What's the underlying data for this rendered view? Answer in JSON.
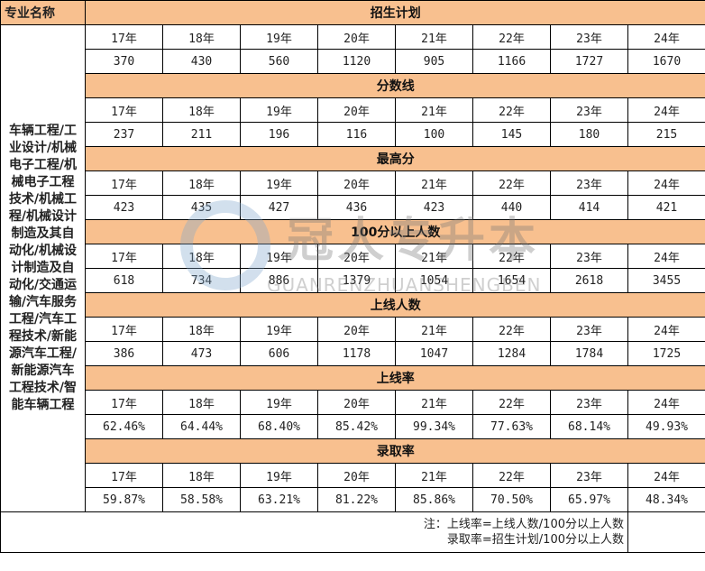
{
  "header": {
    "major_label": "专业名称"
  },
  "major": "车辆工程/工业设计/机械电子工程/机械电子工程技术/机械工程/机械设计制造及其自动化/机械设计制造及自动化/交通运输/汽车服务工程/汽车工程技术/新能源汽车工程/新能源汽车工程技术/智能车辆工程",
  "years": [
    "17年",
    "18年",
    "19年",
    "20年",
    "21年",
    "22年",
    "23年",
    "24年"
  ],
  "sections": [
    {
      "title": "招生计划",
      "values": [
        "370",
        "430",
        "560",
        "1120",
        "905",
        "1166",
        "1727",
        "1670"
      ]
    },
    {
      "title": "分数线",
      "values": [
        "237",
        "211",
        "196",
        "116",
        "100",
        "145",
        "180",
        "215"
      ]
    },
    {
      "title": "最高分",
      "values": [
        "423",
        "435",
        "427",
        "436",
        "423",
        "440",
        "414",
        "421"
      ]
    },
    {
      "title": "100分以上人数",
      "values": [
        "618",
        "734",
        "886",
        "1379",
        "1054",
        "1654",
        "2618",
        "3455"
      ]
    },
    {
      "title": "上线人数",
      "values": [
        "386",
        "473",
        "606",
        "1178",
        "1047",
        "1284",
        "1784",
        "1725"
      ]
    },
    {
      "title": "上线率",
      "values": [
        "62.46%",
        "64.44%",
        "68.40%",
        "85.42%",
        "99.34%",
        "77.63%",
        "68.14%",
        "49.93%"
      ]
    },
    {
      "title": "录取率",
      "values": [
        "59.87%",
        "58.58%",
        "63.21%",
        "81.22%",
        "85.86%",
        "70.50%",
        "65.97%",
        "48.34%"
      ]
    }
  ],
  "notes": [
    "注：上线率=上线人数/100分以上人数",
    "录取率=招生计划/100分以上人数"
  ],
  "watermark": {
    "cn": "冠人专升本",
    "en": "GUANRENZHUANSHENGBEN"
  },
  "colors": {
    "section_bg": "#f8c08f"
  }
}
